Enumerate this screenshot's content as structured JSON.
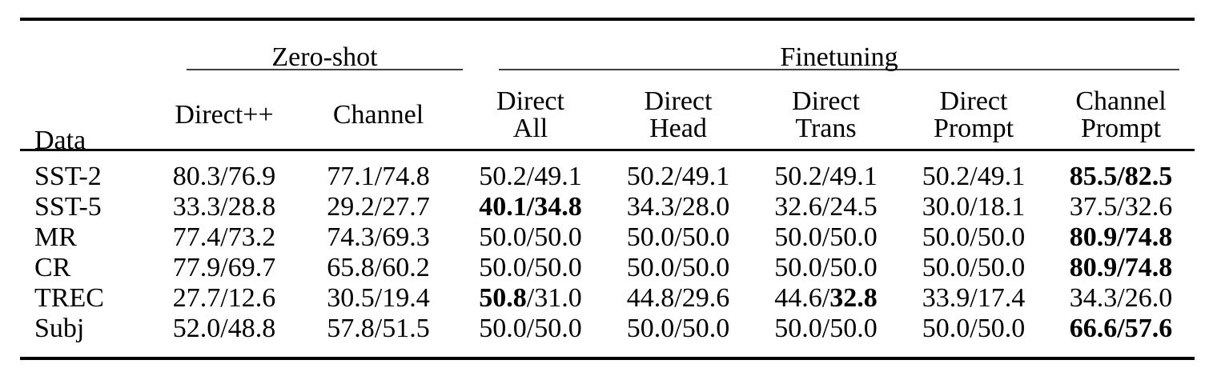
{
  "table": {
    "corner_label": "Data",
    "groups": [
      {
        "label": "Zero-shot",
        "columns": [
          "Direct++",
          "Channel"
        ]
      },
      {
        "label": "Finetuning",
        "columns": [
          "Direct\nAll",
          "Direct\nHead",
          "Direct\nTrans",
          "Direct\nPrompt",
          "Channel\nPrompt"
        ]
      }
    ],
    "rows": [
      {
        "label": "SST-2",
        "values": [
          "80.3/76.9",
          "77.1/74.8",
          "50.2/49.1",
          "50.2/49.1",
          "50.2/49.1",
          "50.2/49.1",
          "**85.5/82.5**"
        ]
      },
      {
        "label": "SST-5",
        "values": [
          "33.3/28.8",
          "29.2/27.7",
          "**40.1/34.8**",
          "34.3/28.0",
          "32.6/24.5",
          "30.0/18.1",
          "37.5/32.6"
        ]
      },
      {
        "label": "MR",
        "values": [
          "77.4/73.2",
          "74.3/69.3",
          "50.0/50.0",
          "50.0/50.0",
          "50.0/50.0",
          "50.0/50.0",
          "**80.9/74.8**"
        ]
      },
      {
        "label": "CR",
        "values": [
          "77.9/69.7",
          "65.8/60.2",
          "50.0/50.0",
          "50.0/50.0",
          "50.0/50.0",
          "50.0/50.0",
          "**80.9/74.8**"
        ]
      },
      {
        "label": "TREC",
        "values": [
          "27.7/12.6",
          "30.5/19.4",
          "**50.8**/31.0",
          "44.8/29.6",
          "44.6/**32.8**",
          "33.9/17.4",
          "34.3/26.0"
        ]
      },
      {
        "label": "Subj",
        "values": [
          "52.0/48.8",
          "57.8/51.5",
          "50.0/50.0",
          "50.0/50.0",
          "50.0/50.0",
          "50.0/50.0",
          "**66.6/57.6**"
        ]
      }
    ]
  },
  "rules": {
    "thick_color": "#000000",
    "thin_color": "#3f3f3f"
  }
}
